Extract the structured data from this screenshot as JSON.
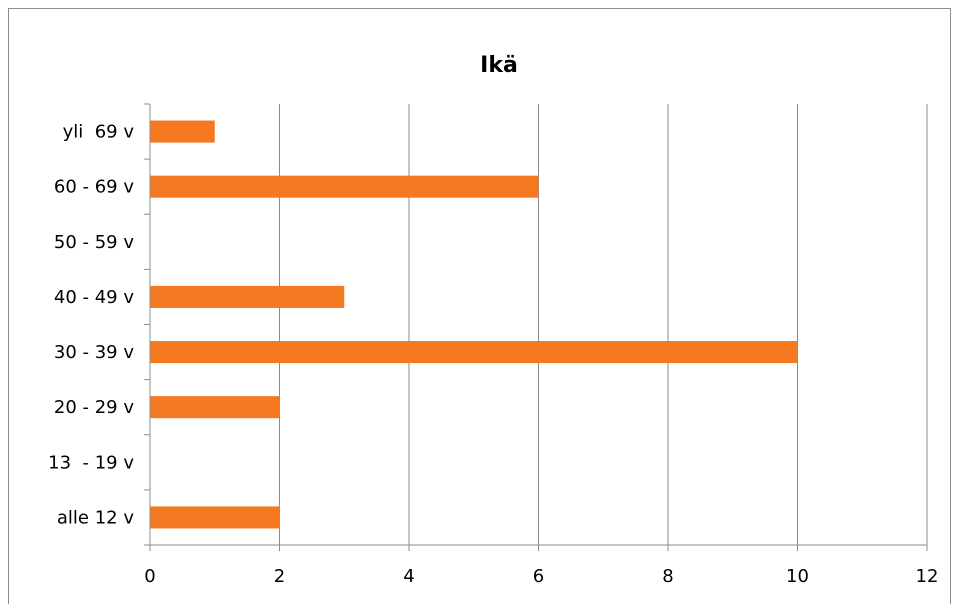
{
  "chart_data": {
    "type": "bar",
    "orientation": "horizontal",
    "title": "Ikä",
    "categories": [
      "alle 12 v",
      "13  - 19 v",
      "20 - 29 v",
      "30 - 39 v",
      "40 - 49 v",
      "50 - 59 v",
      "60 - 69 v",
      "yli  69 v"
    ],
    "values": [
      2,
      0,
      2,
      10,
      3,
      0,
      6,
      1
    ],
    "xlim": [
      0,
      12
    ],
    "xticks": [
      "0",
      "2",
      "4",
      "6",
      "8",
      "10",
      "12"
    ],
    "xlabel": "",
    "ylabel": "",
    "grid": "vertical major gridlines",
    "legend": "none",
    "bar_color": "#f47920",
    "gridline_color": "#8c8c8c",
    "axis_color": "#8c8c8c"
  }
}
